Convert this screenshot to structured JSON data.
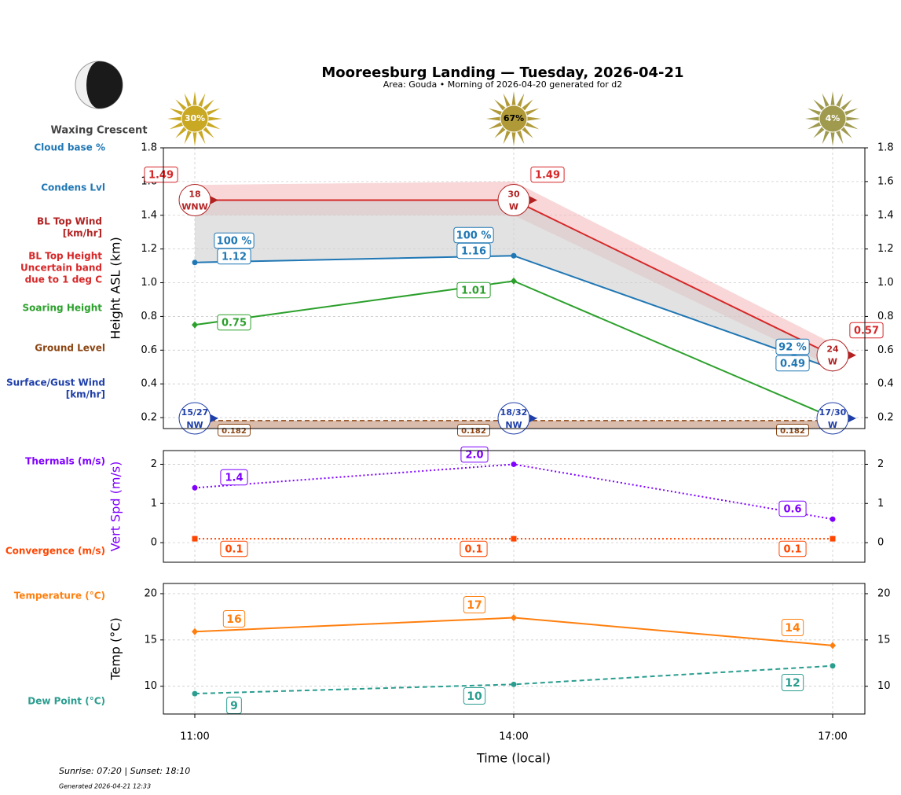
{
  "chart_data": {
    "type": "line",
    "title": "Mooreesburg Landing — Tuesday, 2026-04-21",
    "subtitle": "Area: Gouda • Morning of 2026-04-20 generated for d2",
    "moon_phase": "Waxing Crescent",
    "categories": [
      "11:00",
      "14:00",
      "17:00"
    ],
    "x_label": "Time (local)",
    "cloud_cover": {
      "labels": [
        "30%",
        "67%",
        "4%"
      ],
      "colors": [
        "#c9a823",
        "#b09a38",
        "#a09a4e"
      ]
    },
    "side_labels": [
      {
        "lines": [
          "Cloud base %"
        ],
        "color": "#1f77b4"
      },
      {
        "lines": [
          "Condens Lvl"
        ],
        "color": "#1f77b4"
      },
      {
        "lines": [
          "BL Top Wind",
          "[km/hr]"
        ],
        "color": "#b22222"
      },
      {
        "lines": [
          "BL Top Height",
          "Uncertain band",
          "due to 1 deg C"
        ],
        "color": "#d62728"
      },
      {
        "lines": [
          "Soaring Height"
        ],
        "color": "#2ca02c"
      },
      {
        "lines": [
          "Ground Level"
        ],
        "color": "#8b4513"
      },
      {
        "lines": [
          "Surface/Gust Wind",
          "[km/hr]"
        ],
        "color": "#1f3fa8"
      },
      {
        "lines": [
          "Thermals (m/s)"
        ],
        "color": "#7f00ff"
      },
      {
        "lines": [
          "Convergence (m/s)"
        ],
        "color": "#ff4500"
      },
      {
        "lines": [
          "Temperature (°C)"
        ],
        "color": "#ff7f0e"
      },
      {
        "lines": [
          "Dew Point (°C)"
        ],
        "color": "#2a9d8f"
      }
    ],
    "panels": [
      {
        "y_label": "Height ASL (km)",
        "y_label_color": "#000000",
        "ylim": [
          0.135,
          1.8
        ],
        "yticks": [
          0.2,
          0.4,
          0.6,
          0.8,
          {
            "value": 1,
            "label": "1.0"
          },
          1.2,
          1.4,
          1.6,
          1.8
        ],
        "grid": true,
        "series": [
          {
            "kind": "band",
            "upper": [
              1.58,
              1.6,
              0.64
            ],
            "lower": [
              1.4,
              1.4,
              0.5
            ],
            "color": "#f4b6b8"
          },
          {
            "kind": "line",
            "values": [
              1.49,
              1.49,
              0.57
            ],
            "value_labels": [
              "1.49",
              "1.49",
              "0.57"
            ],
            "color": "#d62728",
            "marker": "none",
            "dash": "solid"
          },
          {
            "kind": "line",
            "values": [
              1.12,
              1.16,
              0.49
            ],
            "value_labels": [
              "1.12",
              "1.16",
              "0.49"
            ],
            "color": "#1f77b4",
            "marker": "circle",
            "dash": "solid",
            "fill_to_series": 1,
            "fill_color": "#cfcfcf",
            "cloud_base_labels": [
              "100 %",
              "100 %",
              "92 %"
            ]
          },
          {
            "kind": "line",
            "values": [
              0.75,
              1.01,
              0.2
            ],
            "value_labels": [
              "0.75",
              "1.01",
              null
            ],
            "color": "#2ca02c",
            "marker": "diamond",
            "dash": "solid"
          },
          {
            "kind": "ground",
            "values": [
              0.182,
              0.182,
              0.182
            ],
            "color": "#8b4513",
            "fill_color": "#c9a089"
          }
        ],
        "bl_top_wind": {
          "speeds": [
            "18",
            "30",
            "24"
          ],
          "directions": [
            "WNW",
            "W",
            "W"
          ],
          "color": "#b22222"
        },
        "surface_wind": {
          "speeds": [
            "15/27",
            "18/32",
            "17/30"
          ],
          "directions": [
            "NW",
            "NW",
            "W"
          ],
          "color": "#1f3fa8"
        }
      },
      {
        "y_label": "Vert Spd (m/s)",
        "y_label_color": "#7f00ff",
        "ylim": [
          -0.5,
          2.35
        ],
        "yticks": [
          0,
          1,
          2
        ],
        "grid": true,
        "series": [
          {
            "kind": "line",
            "values": [
              1.4,
              2.0,
              0.6
            ],
            "value_labels": [
              "1.4",
              "2.0",
              "0.6"
            ],
            "color": "#7f00ff",
            "marker": "circle",
            "dash": "dotted"
          },
          {
            "kind": "line",
            "values": [
              0.1,
              0.1,
              0.1
            ],
            "color": "#ff4500",
            "marker": "square",
            "dash": "dotted"
          }
        ]
      },
      {
        "y_label": "Temp (°C)",
        "y_label_color": "#000000",
        "ylim": [
          7,
          21.1
        ],
        "yticks": [
          10,
          15,
          20
        ],
        "grid": true,
        "series": [
          {
            "kind": "line",
            "values": [
              15.9,
              17.4,
              14.4
            ],
            "value_labels": [
              "16",
              "17",
              "14"
            ],
            "color": "#ff7f0e",
            "marker": "diamond",
            "dash": "solid"
          },
          {
            "kind": "line",
            "values": [
              9.2,
              10.2,
              12.2
            ],
            "value_labels": [
              "9",
              "10",
              "12"
            ],
            "color": "#2a9d8f",
            "marker": "circle",
            "dash": "dashed"
          }
        ]
      }
    ],
    "footer": {
      "sun": "Sunrise: 07:20 | Sunset: 18:10",
      "generated": "Generated 2026-04-21 12:33"
    }
  }
}
